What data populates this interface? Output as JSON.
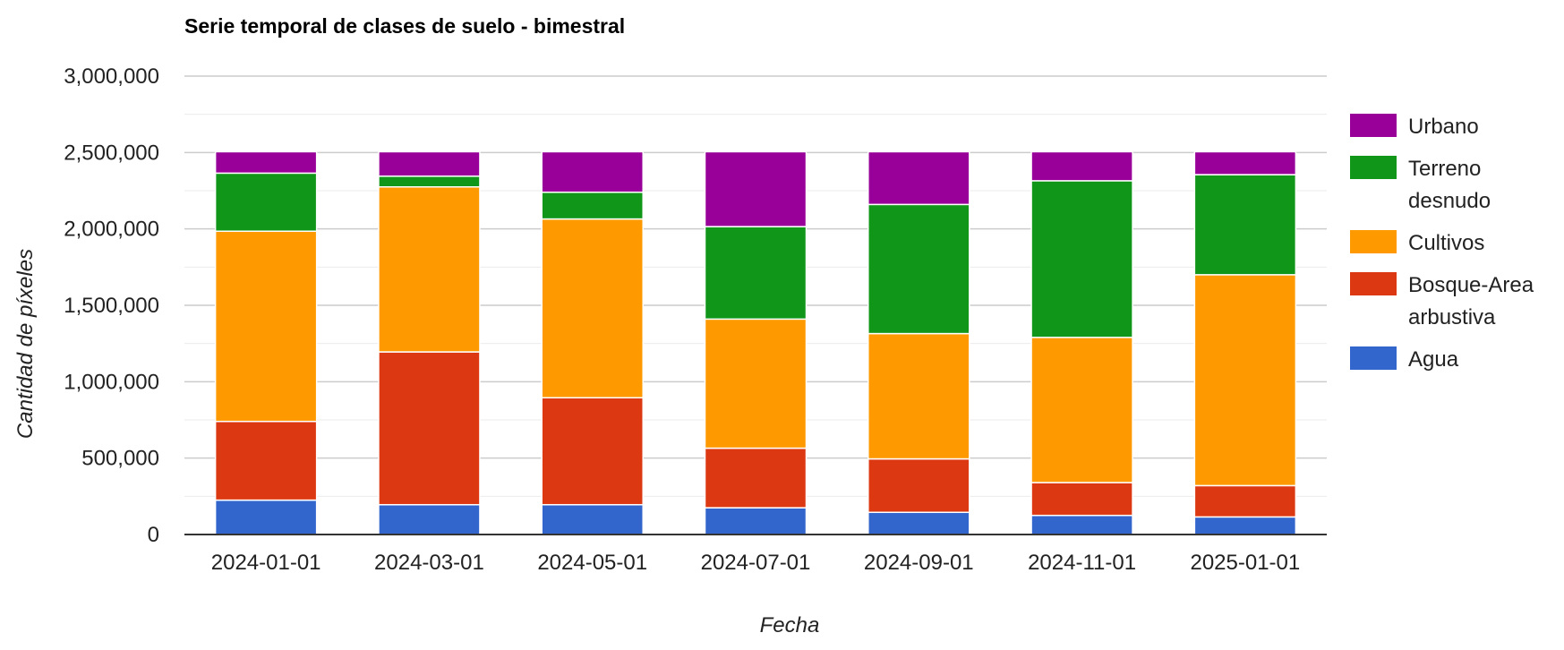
{
  "chart_data": {
    "type": "bar",
    "stacked": true,
    "title": "Serie temporal de clases de suelo - bimestral",
    "xlabel": "Fecha",
    "ylabel": "Cantidad de píxeles",
    "ylim": [
      0,
      3000000
    ],
    "yticks": [
      "0",
      "500,000",
      "1,000,000",
      "1,500,000",
      "2,000,000",
      "2,500,000",
      "3,000,000"
    ],
    "ytick_values": [
      0,
      500000,
      1000000,
      1500000,
      2000000,
      2500000,
      3000000
    ],
    "grid": true,
    "legend_position": "right",
    "categories": [
      "2024-01-01",
      "2024-03-01",
      "2024-05-01",
      "2024-07-01",
      "2024-09-01",
      "2024-11-01",
      "2025-01-01"
    ],
    "series": [
      {
        "name": "Agua",
        "color": "#3366cc",
        "values": [
          225000,
          195000,
          195000,
          175000,
          145000,
          125000,
          115000
        ]
      },
      {
        "name": "Bosque-Area arbustiva",
        "color": "#dc3912",
        "values": [
          515000,
          1000000,
          700000,
          390000,
          350000,
          215000,
          205000
        ]
      },
      {
        "name": "Cultivos",
        "color": "#ff9900",
        "values": [
          1245000,
          1080000,
          1170000,
          845000,
          820000,
          950000,
          1380000
        ]
      },
      {
        "name": "Terreno desnudo",
        "color": "#109618",
        "values": [
          380000,
          70000,
          175000,
          605000,
          845000,
          1025000,
          655000
        ]
      },
      {
        "name": "Urbano",
        "color": "#990099",
        "values": [
          140000,
          160000,
          265000,
          490000,
          345000,
          190000,
          150000
        ]
      }
    ],
    "legend_lines": {
      "Urbano": [
        "Urbano"
      ],
      "Terreno desnudo": [
        "Terreno",
        "desnudo"
      ],
      "Cultivos": [
        "Cultivos"
      ],
      "Bosque-Area arbustiva": [
        "Bosque-Area",
        "arbustiva"
      ],
      "Agua": [
        "Agua"
      ]
    }
  }
}
